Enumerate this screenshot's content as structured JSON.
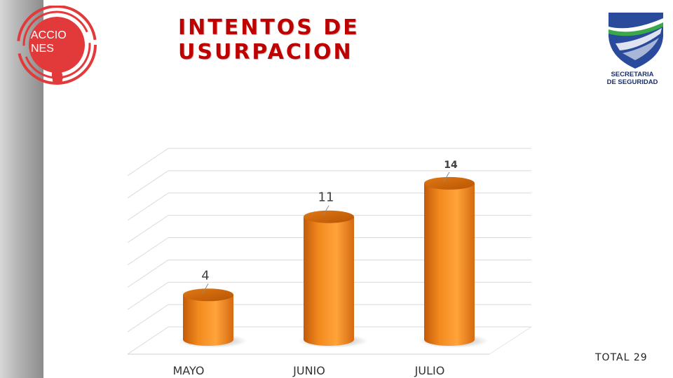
{
  "branding": {
    "left_logo_text": "ACCIO NES",
    "left_logo_text_line1": "ACCIO",
    "left_logo_text_line2": "NES",
    "right_logo_line1": "SECRETARIA",
    "right_logo_line2": "DE SEGURIDAD",
    "accent_red": "#c00000",
    "logo_red": "#e23a3a",
    "bar_orange": "#f7931e",
    "shield_blue": "#2a4a9c",
    "shield_green": "#3aa84a"
  },
  "summary": {
    "total_label": "TOTAL  29"
  },
  "chart_data": {
    "type": "bar",
    "title": "INTENTOS DE USURPACION",
    "title_line1": "INTENTOS DE",
    "title_line2": "USURPACION",
    "categories": [
      "MAYO",
      "JUNIO",
      "JULIO"
    ],
    "values": [
      4,
      11,
      14
    ],
    "data_labels": [
      "4",
      "11",
      "14"
    ],
    "ylim": [
      0,
      16
    ],
    "grid": true,
    "legend": "none",
    "xlabel": "",
    "ylabel": ""
  }
}
